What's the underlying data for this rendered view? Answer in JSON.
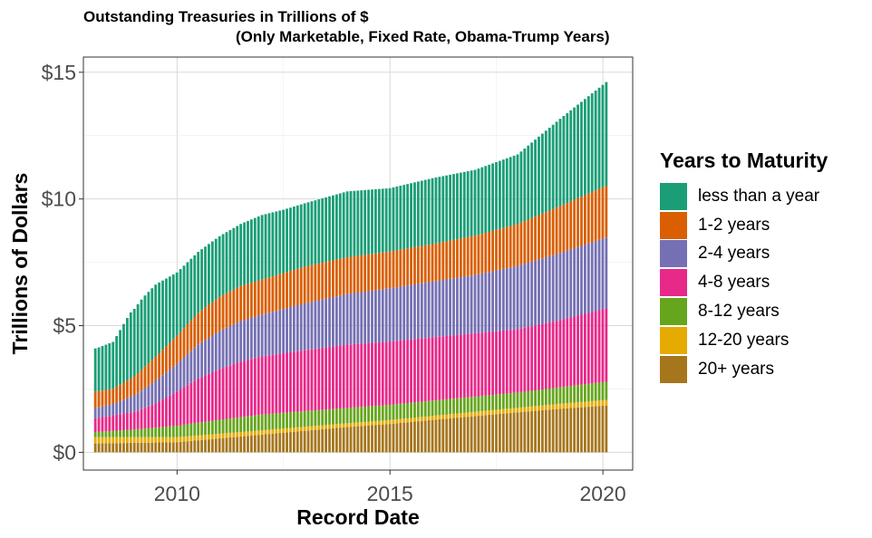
{
  "chart_data": {
    "type": "bar",
    "stacked": true,
    "title": "Outstanding Treasuries in Trillions of $",
    "subtitle": "(Only Marketable, Fixed Rate, Obama-Trump Years)",
    "xlabel": "Record Date",
    "ylabel": "Trillions of Dollars",
    "xlim": [
      2007.8,
      2020.7
    ],
    "ylim": [
      -0.7,
      15.6
    ],
    "x_ticks": [
      2010,
      2015,
      2020
    ],
    "x_tick_labels": [
      "2010",
      "2015",
      "2020"
    ],
    "y_ticks": [
      0,
      5,
      10,
      15
    ],
    "y_tick_labels": [
      "$0",
      "$5",
      "$10",
      "$15"
    ],
    "grid": true,
    "legend_title": "Years to Maturity",
    "legend_position": "right",
    "bar_start": 2008.08,
    "bar_step_months": 1,
    "bar_count": 145,
    "series": [
      {
        "name": "20+ years",
        "color": "#A6761D",
        "knots": [
          [
            2008.1,
            0.35
          ],
          [
            2010.0,
            0.4
          ],
          [
            2011.0,
            0.55
          ],
          [
            2012.0,
            0.7
          ],
          [
            2013.0,
            0.85
          ],
          [
            2014.0,
            1.0
          ],
          [
            2015.0,
            1.12
          ],
          [
            2016.0,
            1.28
          ],
          [
            2017.0,
            1.43
          ],
          [
            2018.0,
            1.58
          ],
          [
            2019.0,
            1.72
          ],
          [
            2020.1,
            1.85
          ]
        ]
      },
      {
        "name": "12-20 years",
        "color": "#E6AB02",
        "knots": [
          [
            2008.1,
            0.25
          ],
          [
            2010.0,
            0.2
          ],
          [
            2012.0,
            0.17
          ],
          [
            2014.0,
            0.15
          ],
          [
            2016.0,
            0.16
          ],
          [
            2018.0,
            0.18
          ],
          [
            2020.1,
            0.22
          ]
        ]
      },
      {
        "name": "8-12 years",
        "color": "#66A61E",
        "knots": [
          [
            2008.1,
            0.2
          ],
          [
            2009.0,
            0.3
          ],
          [
            2010.0,
            0.45
          ],
          [
            2011.0,
            0.55
          ],
          [
            2012.0,
            0.62
          ],
          [
            2013.0,
            0.62
          ],
          [
            2014.0,
            0.6
          ],
          [
            2015.0,
            0.6
          ],
          [
            2016.0,
            0.6
          ],
          [
            2017.0,
            0.6
          ],
          [
            2018.0,
            0.6
          ],
          [
            2019.0,
            0.65
          ],
          [
            2020.1,
            0.72
          ]
        ]
      },
      {
        "name": "4-8 years",
        "color": "#E7298A",
        "knots": [
          [
            2008.1,
            0.55
          ],
          [
            2009.0,
            0.7
          ],
          [
            2009.5,
            0.95
          ],
          [
            2010.0,
            1.35
          ],
          [
            2010.5,
            1.75
          ],
          [
            2011.0,
            2.0
          ],
          [
            2011.5,
            2.2
          ],
          [
            2012.0,
            2.3
          ],
          [
            2013.0,
            2.4
          ],
          [
            2014.0,
            2.5
          ],
          [
            2015.0,
            2.5
          ],
          [
            2016.0,
            2.5
          ],
          [
            2017.0,
            2.5
          ],
          [
            2018.0,
            2.5
          ],
          [
            2019.0,
            2.65
          ],
          [
            2020.1,
            2.9
          ]
        ]
      },
      {
        "name": "2-4 years",
        "color": "#7570B3",
        "knots": [
          [
            2008.1,
            0.4
          ],
          [
            2008.5,
            0.45
          ],
          [
            2009.0,
            0.65
          ],
          [
            2009.5,
            0.9
          ],
          [
            2010.0,
            1.1
          ],
          [
            2010.5,
            1.35
          ],
          [
            2011.0,
            1.5
          ],
          [
            2011.5,
            1.6
          ],
          [
            2012.0,
            1.65
          ],
          [
            2012.5,
            1.75
          ],
          [
            2013.0,
            1.85
          ],
          [
            2014.0,
            2.0
          ],
          [
            2015.0,
            2.1
          ],
          [
            2016.0,
            2.2
          ],
          [
            2017.0,
            2.3
          ],
          [
            2018.0,
            2.5
          ],
          [
            2019.0,
            2.65
          ],
          [
            2020.1,
            2.8
          ]
        ]
      },
      {
        "name": "1-2 years",
        "color": "#D95F02",
        "knots": [
          [
            2008.1,
            0.65
          ],
          [
            2008.5,
            0.6
          ],
          [
            2009.0,
            0.75
          ],
          [
            2009.5,
            0.95
          ],
          [
            2010.0,
            1.1
          ],
          [
            2010.5,
            1.25
          ],
          [
            2011.0,
            1.35
          ],
          [
            2011.5,
            1.38
          ],
          [
            2012.0,
            1.38
          ],
          [
            2013.0,
            1.45
          ],
          [
            2014.0,
            1.45
          ],
          [
            2015.0,
            1.45
          ],
          [
            2016.0,
            1.48
          ],
          [
            2017.0,
            1.55
          ],
          [
            2018.0,
            1.65
          ],
          [
            2019.0,
            1.85
          ],
          [
            2020.1,
            2.05
          ]
        ]
      },
      {
        "name": "less than a year",
        "color": "#1B9E77",
        "knots": [
          [
            2008.1,
            1.7
          ],
          [
            2008.5,
            1.85
          ],
          [
            2008.9,
            2.6
          ],
          [
            2009.2,
            2.8
          ],
          [
            2009.5,
            2.85
          ],
          [
            2010.0,
            2.5
          ],
          [
            2010.5,
            2.4
          ],
          [
            2011.0,
            2.4
          ],
          [
            2011.5,
            2.45
          ],
          [
            2012.0,
            2.55
          ],
          [
            2012.5,
            2.5
          ],
          [
            2013.0,
            2.5
          ],
          [
            2014.0,
            2.6
          ],
          [
            2015.0,
            2.5
          ],
          [
            2016.0,
            2.6
          ],
          [
            2017.0,
            2.6
          ],
          [
            2018.0,
            2.75
          ],
          [
            2019.0,
            3.45
          ],
          [
            2020.1,
            4.1
          ]
        ]
      }
    ]
  }
}
